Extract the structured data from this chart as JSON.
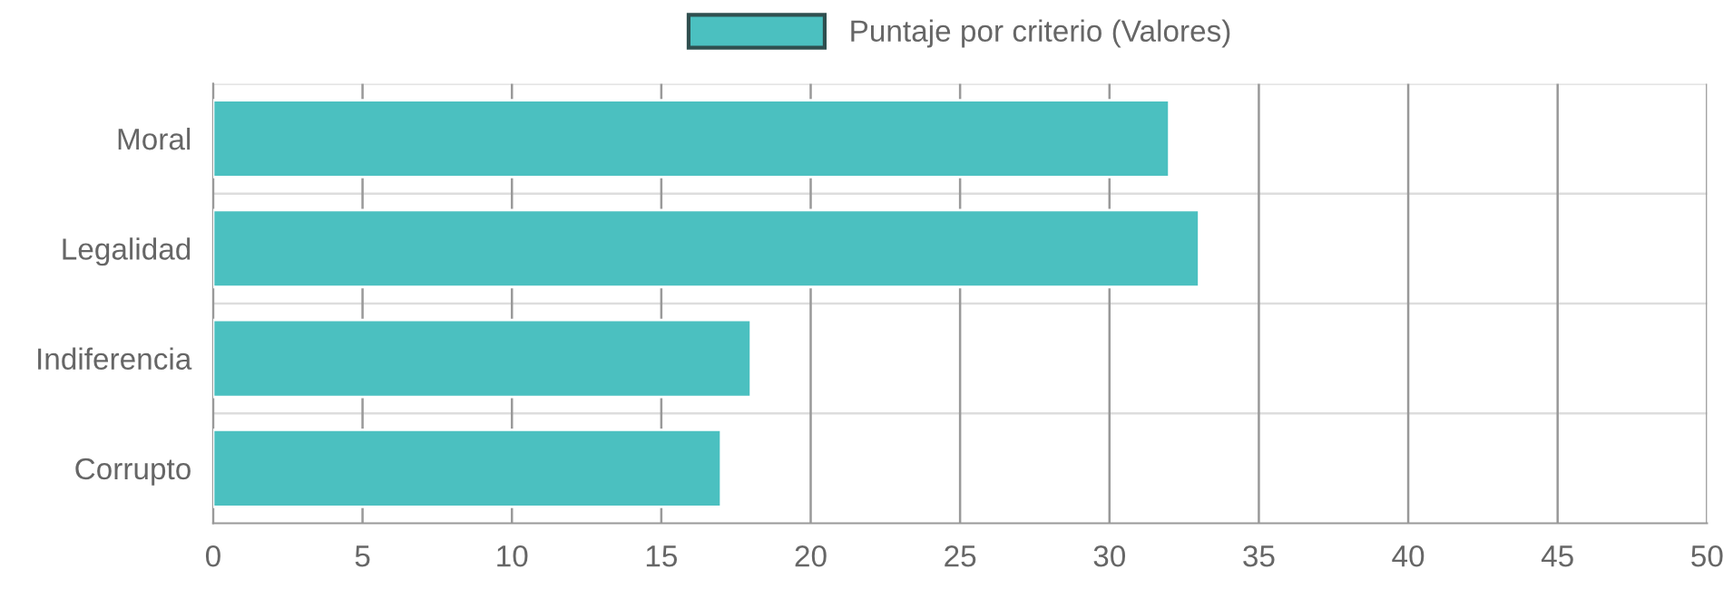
{
  "chart_data": {
    "type": "bar",
    "orientation": "horizontal",
    "categories": [
      "Moral",
      "Legalidad",
      "Indiferencia",
      "Corrupto"
    ],
    "series": [
      {
        "name": "Puntaje por criterio (Valores)",
        "color": "#4bc0c0",
        "values": [
          32,
          33,
          18,
          17
        ]
      }
    ],
    "xlim": [
      0,
      50
    ],
    "xticks": [
      0,
      5,
      10,
      15,
      20,
      25,
      30,
      35,
      40,
      45,
      50
    ],
    "grid": true,
    "legend": "top"
  }
}
